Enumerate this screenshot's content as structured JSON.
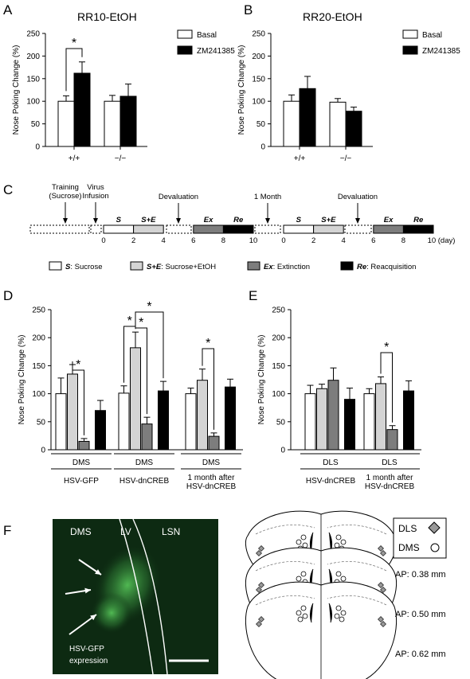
{
  "colors": {
    "white": "#ffffff",
    "black": "#000000",
    "light": "#d4d4d4",
    "dark": "#7d7d7d",
    "micro": "#0d2a12"
  },
  "panels": {
    "A": "A",
    "B": "B",
    "C": "C",
    "D": "D",
    "E": "E",
    "F": "F"
  },
  "chart_data": [
    {
      "id": "A",
      "type": "bar",
      "title": "RR10-EtOH",
      "ylabel": "Nose Poking Change (%)",
      "ylim": [
        0,
        250
      ],
      "yticks": [
        "0",
        "50",
        "100",
        "150",
        "200",
        "250"
      ],
      "categories": [
        "+/+",
        "−/−"
      ],
      "series": [
        {
          "name": "Basal",
          "color": "#ffffff",
          "values": [
            100,
            100
          ],
          "errors": [
            12,
            13
          ]
        },
        {
          "name": "ZM241385",
          "color": "#000000",
          "values": [
            162,
            111
          ],
          "errors": [
            25,
            27
          ]
        }
      ],
      "significance": [
        {
          "label": "*"
        }
      ]
    },
    {
      "id": "B",
      "type": "bar",
      "title": "RR20-EtOH",
      "ylabel": "Nose Poking Change (%)",
      "ylim": [
        0,
        250
      ],
      "yticks": [
        "0",
        "50",
        "100",
        "150",
        "200",
        "250"
      ],
      "categories": [
        "+/+",
        "−/−"
      ],
      "series": [
        {
          "name": "Basal",
          "color": "#ffffff",
          "values": [
            100,
            98
          ],
          "errors": [
            14,
            8
          ]
        },
        {
          "name": "ZM241385",
          "color": "#000000",
          "values": [
            128,
            78
          ],
          "errors": [
            27,
            9
          ]
        }
      ]
    },
    {
      "id": "D",
      "type": "bar",
      "ylabel": "Nose Poking Change (%)",
      "ylim": [
        0,
        250
      ],
      "yticks": [
        "0",
        "50",
        "100",
        "150",
        "200",
        "250"
      ],
      "group_labels": [
        "DMS",
        "DMS",
        "DMS"
      ],
      "sub_labels": [
        "HSV-GFP",
        "HSV-dnCREB",
        "1 month after\nHSV-dnCREB"
      ],
      "groups": [
        {
          "values": [
            100,
            135,
            15,
            70
          ],
          "errors": [
            28,
            17,
            5,
            18
          ]
        },
        {
          "values": [
            101,
            182,
            46,
            105
          ],
          "errors": [
            13,
            28,
            12,
            17
          ]
        },
        {
          "values": [
            100,
            124,
            24,
            112
          ],
          "errors": [
            10,
            20,
            6,
            14
          ]
        }
      ],
      "significance": [
        {
          "label": "*"
        },
        {
          "label": "*"
        },
        {
          "label": "*"
        },
        {
          "label": "*"
        },
        {
          "label": "*"
        }
      ]
    },
    {
      "id": "E",
      "type": "bar",
      "ylabel": "Nose Poking Change (%)",
      "ylim": [
        0,
        250
      ],
      "yticks": [
        "0",
        "50",
        "100",
        "150",
        "200",
        "250"
      ],
      "group_labels": [
        "DLS",
        "DLS"
      ],
      "sub_labels": [
        "HSV-dnCREB",
        "1 month after\nHSV-dnCREB"
      ],
      "groups": [
        {
          "values": [
            100,
            109,
            124,
            90
          ],
          "errors": [
            15,
            8,
            22,
            20
          ]
        },
        {
          "values": [
            100,
            118,
            36,
            105
          ],
          "errors": [
            9,
            12,
            7,
            18
          ]
        }
      ],
      "significance": [
        {
          "label": "*"
        }
      ]
    }
  ],
  "timeline": {
    "events": [
      "Training\n(Sucrose)",
      "Virus\nInfusion",
      "Devaluation",
      "1 Month",
      "Devaluation"
    ],
    "phases": [
      "S",
      "S+E",
      "Ex",
      "Re",
      "S",
      "S+E",
      "Ex",
      "Re"
    ],
    "ticks_1": [
      "0",
      "2",
      "4",
      "6",
      "8",
      "10"
    ],
    "ticks_2": [
      "0",
      "2",
      "4",
      "6",
      "8",
      "10 (day)"
    ],
    "legend": [
      {
        "key": "S",
        "text": ": Sucrose",
        "color": "#ffffff"
      },
      {
        "key": "S+E",
        "text": ": Sucrose+EtOH",
        "color": "#d4d4d4"
      },
      {
        "key": "Ex",
        "text": ": Extinction",
        "color": "#7d7d7d"
      },
      {
        "key": "Re",
        "text": ": Reacquisition",
        "color": "#000000"
      }
    ]
  },
  "histology": {
    "labels": [
      "DMS",
      "LV",
      "LSN"
    ],
    "expression": "HSV-GFP\nexpression",
    "legend_dls": "DLS",
    "legend_dms": "DMS",
    "ap": [
      "AP: 0.38 mm",
      "AP: 0.50 mm",
      "AP: 0.62 mm"
    ]
  }
}
